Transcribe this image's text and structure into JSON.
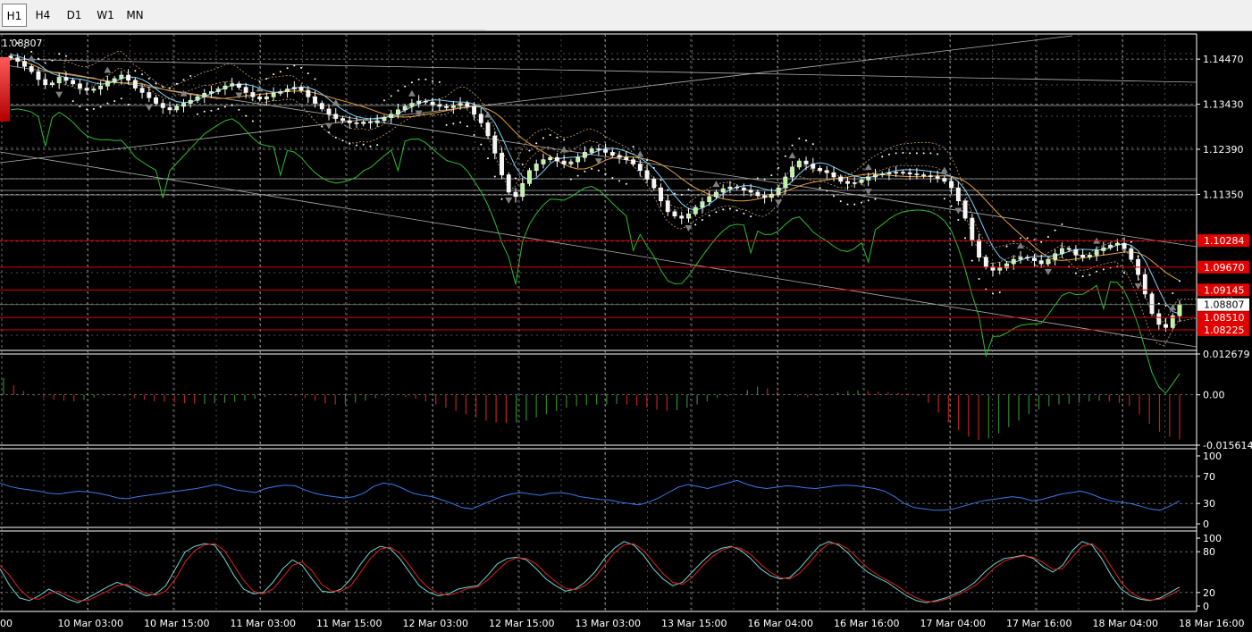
{
  "toolbar": {
    "timeframes": [
      {
        "label": "H1",
        "active": true
      },
      {
        "label": "H4",
        "active": false
      },
      {
        "label": "D1",
        "active": false
      },
      {
        "label": "W1",
        "active": false
      },
      {
        "label": "MN",
        "active": false
      }
    ]
  },
  "price_readout": "1.08807",
  "colors": {
    "background": "#000000",
    "grid": "#9a9a9a",
    "candle_up": "#ffffff",
    "candle_bull_fill": "#b8f59a",
    "candle_down": "#f5f5f5",
    "level_line": "#e00000",
    "ichimoku_cloud": "#c8a070",
    "tenkan": "#7fd4ff",
    "kijun": "#e8a040",
    "chikou": "#2ebd2e",
    "sar": "#ffffff",
    "fractal": "#808080",
    "macd_up": "#2a8a2a",
    "macd_down": "#c02020",
    "rsi": "#3a78e8",
    "stoch_main": "#6fd6d6",
    "stoch_signal": "#e02020"
  },
  "chart_data": [
    {
      "type": "candlestick",
      "panel": "main",
      "x_tick_labels": [
        "00",
        "10 Mar 03:00",
        "10 Mar 15:00",
        "11 Mar 03:00",
        "11 Mar 15:00",
        "12 Mar 03:00",
        "12 Mar 15:00",
        "13 Mar 03:00",
        "13 Mar 15:00",
        "16 Mar 04:00",
        "16 Mar 16:00",
        "17 Mar 04:00",
        "17 Mar 16:00",
        "18 Mar 04:00",
        "18 Mar 16:00"
      ],
      "y_tick_labels": [
        "1.14470",
        "1.13430",
        "1.12390",
        "1.11350"
      ],
      "ylim": [
        1.0775,
        1.1505
      ],
      "current_price": "1.08807",
      "levels": [
        {
          "value": 1.10284,
          "label": "1.10284"
        },
        {
          "value": 1.0967,
          "label": "1.09670"
        },
        {
          "value": 1.09145,
          "label": "1.09145"
        },
        {
          "value": 1.0851,
          "label": "1.08510"
        },
        {
          "value": 1.08225,
          "label": "1.08225"
        }
      ],
      "close": [
        1.145,
        1.1442,
        1.143,
        1.1418,
        1.14,
        1.1388,
        1.1392,
        1.1405,
        1.1398,
        1.139,
        1.138,
        1.1375,
        1.1378,
        1.1385,
        1.1395,
        1.1402,
        1.141,
        1.1398,
        1.138,
        1.137,
        1.1358,
        1.1345,
        1.1335,
        1.133,
        1.1338,
        1.1345,
        1.1352,
        1.136,
        1.1368,
        1.1372,
        1.1378,
        1.1385,
        1.139,
        1.1382,
        1.137,
        1.136,
        1.1355,
        1.136,
        1.1368,
        1.1372,
        1.1378,
        1.1382,
        1.1375,
        1.136,
        1.1345,
        1.1332,
        1.132,
        1.131,
        1.1305,
        1.13,
        1.1298,
        1.1302,
        1.13,
        1.1305,
        1.1312,
        1.132,
        1.133,
        1.1338,
        1.1345,
        1.135,
        1.1348,
        1.1342,
        1.1338,
        1.1335,
        1.134,
        1.1345,
        1.1338,
        1.132,
        1.13,
        1.127,
        1.123,
        1.118,
        1.114,
        1.113,
        1.116,
        1.119,
        1.1205,
        1.1215,
        1.122,
        1.1212,
        1.1205,
        1.121,
        1.122,
        1.1232,
        1.124,
        1.1238,
        1.1232,
        1.1225,
        1.122,
        1.1215,
        1.1205,
        1.119,
        1.117,
        1.115,
        1.112,
        1.1095,
        1.1085,
        1.108,
        1.109,
        1.1105,
        1.1118,
        1.113,
        1.114,
        1.1148,
        1.1152,
        1.115,
        1.1145,
        1.114,
        1.1132,
        1.1128,
        1.1135,
        1.115,
        1.1175,
        1.1198,
        1.1212,
        1.1205,
        1.1195,
        1.119,
        1.1185,
        1.1175,
        1.1165,
        1.116,
        1.1162,
        1.1168,
        1.1175,
        1.118,
        1.1182,
        1.1185,
        1.1186,
        1.1185,
        1.1182,
        1.118,
        1.1178,
        1.1176,
        1.1172,
        1.1165,
        1.115,
        1.112,
        1.108,
        1.103,
        1.099,
        1.0968,
        1.096,
        1.0965,
        1.0975,
        1.0985,
        1.099,
        1.0988,
        1.0982,
        1.0975,
        1.0985,
        1.0998,
        1.101,
        1.1008,
        1.0995,
        1.099,
        1.0995,
        1.1005,
        1.1012,
        1.1018,
        1.1022,
        1.101,
        1.0985,
        1.095,
        1.0905,
        1.086,
        1.0835,
        1.0828,
        1.0855,
        1.0881
      ],
      "indicators": [
        "Ichimoku Kinko Hyo",
        "Parabolic SAR",
        "Fractals",
        "Moving averages"
      ]
    },
    {
      "type": "bar",
      "panel": "MACD histogram",
      "y_tick_labels": [
        "0.012679",
        "0.00",
        "-0.015614"
      ],
      "ylim": [
        -0.015614,
        0.012679
      ],
      "values": [
        0.0052,
        0.003,
        0.0012,
        -0.0003,
        -0.001,
        -0.0015,
        -0.0018,
        -0.002,
        -0.0015,
        -0.0009,
        -0.0003,
        0.0,
        -0.0004,
        -0.001,
        -0.0015,
        -0.002,
        -0.0022,
        -0.0024,
        -0.0026,
        -0.0028,
        -0.0028,
        -0.0026,
        -0.0025,
        -0.0022,
        -0.0018,
        -0.0012,
        -0.0006,
        -0.0002,
        0.0,
        -0.0004,
        -0.001,
        -0.0018,
        -0.0026,
        -0.003,
        -0.0028,
        -0.0024,
        -0.0018,
        -0.001,
        -0.0004,
        0.0,
        -0.0006,
        -0.0012,
        -0.002,
        -0.003,
        -0.004,
        -0.005,
        -0.006,
        -0.007,
        -0.008,
        -0.0085,
        -0.0088,
        -0.0086,
        -0.008,
        -0.007,
        -0.006,
        -0.005,
        -0.004,
        -0.0035,
        -0.0032,
        -0.003,
        -0.003,
        -0.0028,
        -0.003,
        -0.0034,
        -0.004,
        -0.0046,
        -0.005,
        -0.0048,
        -0.004,
        -0.003,
        -0.002,
        -0.001,
        -0.0005,
        0.0,
        0.0015,
        0.0025,
        0.002,
        0.001,
        0.0002,
        -0.0004,
        -0.0008,
        -0.0004,
        0.0002,
        0.0008,
        0.0012,
        0.0014,
        0.0012,
        0.001,
        0.0008,
        0.0006,
        0.0004,
        -0.0004,
        -0.0025,
        -0.0055,
        -0.0085,
        -0.011,
        -0.013,
        -0.014,
        -0.0135,
        -0.012,
        -0.01,
        -0.008,
        -0.006,
        -0.0045,
        -0.0035,
        -0.003,
        -0.0028,
        -0.0025,
        -0.002,
        -0.0018,
        -0.002,
        -0.0025,
        -0.0035,
        -0.006,
        -0.009,
        -0.0115,
        -0.013,
        -0.0138
      ]
    },
    {
      "type": "line",
      "panel": "RSI",
      "y_tick_labels": [
        "100",
        "70",
        "30",
        "0"
      ],
      "ylim": [
        0,
        100
      ],
      "values": [
        60,
        55,
        52,
        50,
        48,
        45,
        44,
        46,
        48,
        47,
        45,
        42,
        38,
        37,
        40,
        42,
        44,
        46,
        48,
        50,
        52,
        55,
        58,
        54,
        50,
        48,
        46,
        52,
        55,
        57,
        56,
        50,
        45,
        42,
        40,
        38,
        40,
        45,
        55,
        60,
        58,
        52,
        45,
        42,
        40,
        35,
        30,
        24,
        22,
        28,
        34,
        40,
        44,
        46,
        44,
        42,
        45,
        46,
        44,
        40,
        38,
        36,
        35,
        32,
        30,
        28,
        32,
        38,
        46,
        54,
        58,
        55,
        52,
        56,
        60,
        64,
        58,
        54,
        52,
        54,
        56,
        55,
        53,
        52,
        54,
        56,
        57,
        56,
        54,
        52,
        48,
        40,
        30,
        24,
        22,
        20,
        20,
        22,
        26,
        30,
        34,
        36,
        38,
        40,
        38,
        34,
        36,
        40,
        44,
        46,
        48,
        44,
        38,
        34,
        32,
        30,
        26,
        22,
        20,
        26,
        34
      ]
    },
    {
      "type": "line",
      "panel": "Stochastic",
      "y_tick_labels": [
        "100",
        "80",
        "20",
        "0"
      ],
      "ylim": [
        0,
        100
      ],
      "series": [
        {
          "values": [
            55,
            30,
            12,
            8,
            15,
            25,
            18,
            10,
            5,
            12,
            20,
            28,
            35,
            30,
            22,
            15,
            18,
            30,
            55,
            80,
            88,
            92,
            90,
            70,
            45,
            25,
            18,
            20,
            35,
            55,
            68,
            60,
            40,
            22,
            20,
            25,
            40,
            62,
            80,
            88,
            85,
            70,
            50,
            30,
            20,
            15,
            18,
            25,
            28,
            30,
            45,
            62,
            70,
            72,
            68,
            55,
            40,
            30,
            22,
            25,
            35,
            50,
            70,
            85,
            95,
            90,
            75,
            55,
            40,
            30,
            35,
            50,
            65,
            78,
            85,
            88,
            82,
            70,
            55,
            45,
            40,
            42,
            55,
            72,
            88,
            95,
            90,
            78,
            62,
            50,
            42,
            35,
            25,
            15,
            8,
            5,
            8,
            12,
            18,
            25,
            35,
            50,
            62,
            70,
            72,
            75,
            70,
            58,
            50,
            60,
            82,
            95,
            90,
            70,
            45,
            25,
            15,
            10,
            8,
            12,
            20,
            28
          ]
        },
        {
          "values": [
            60,
            45,
            25,
            12,
            10,
            18,
            22,
            15,
            8,
            8,
            15,
            22,
            30,
            32,
            26,
            18,
            16,
            22,
            40,
            65,
            82,
            90,
            92,
            82,
            60,
            38,
            22,
            18,
            25,
            42,
            60,
            65,
            52,
            32,
            22,
            22,
            30,
            50,
            70,
            84,
            87,
            78,
            60,
            40,
            26,
            18,
            16,
            20,
            26,
            28,
            38,
            52,
            65,
            71,
            70,
            62,
            48,
            36,
            26,
            24,
            30,
            42,
            60,
            78,
            90,
            92,
            82,
            65,
            48,
            35,
            32,
            42,
            58,
            72,
            82,
            87,
            85,
            76,
            62,
            50,
            42,
            40,
            48,
            63,
            80,
            92,
            92,
            84,
            70,
            56,
            46,
            38,
            30,
            20,
            12,
            7,
            6,
            10,
            15,
            22,
            30,
            42,
            56,
            66,
            71,
            74,
            72,
            64,
            54,
            55,
            72,
            88,
            92,
            80,
            58,
            35,
            20,
            12,
            9,
            10,
            16,
            24
          ]
        }
      ]
    }
  ]
}
